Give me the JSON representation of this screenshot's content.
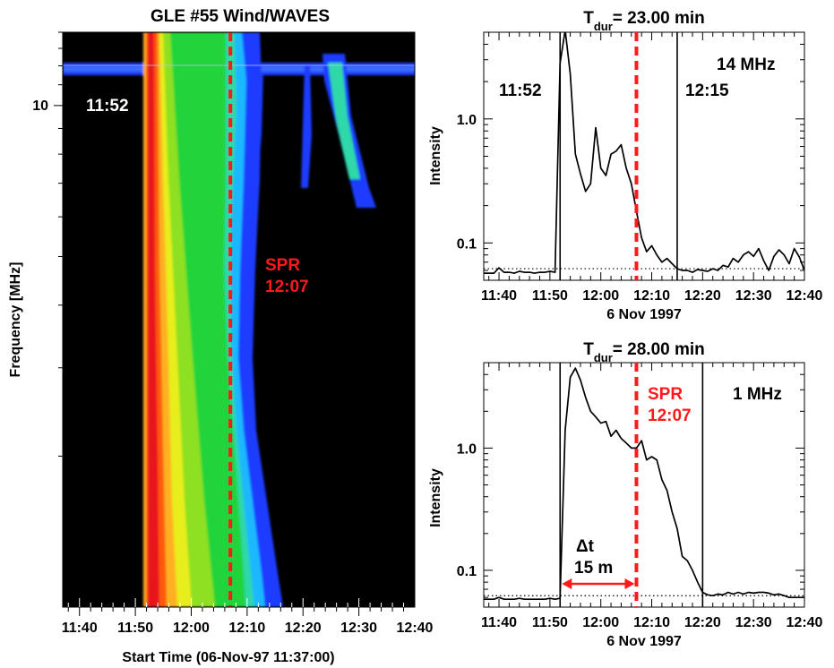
{
  "colors": {
    "marker": "#ff1a1a",
    "axis": "#000000",
    "background": "#ffffff"
  },
  "chart_data": [
    {
      "type": "heatmap",
      "title": "GLE #55 Wind/WAVES",
      "xlabel": "Start Time (06-Nov-97 11:37:00)",
      "ylabel": "Frequency [MHz]",
      "x_unit": "minutes after 11:37",
      "xlim": [
        0,
        63
      ],
      "ylim_mhz": [
        1,
        14
      ],
      "y_scale": "log",
      "x_ticks": [
        3,
        13,
        23,
        33,
        43,
        53,
        63
      ],
      "x_tick_labels": [
        "11:40",
        "11:50",
        "12:00",
        "12:10",
        "12:20",
        "12:30",
        "12:40"
      ],
      "y_ticks": [
        10
      ],
      "y_tick_labels": [
        "10"
      ],
      "annotations": {
        "start_label": "11:52",
        "spr_label_1": "SPR",
        "spr_label_2": "12:07"
      },
      "spr_time": 30,
      "note": "Intensity shown as a color image; no colorbar is printed."
    },
    {
      "type": "line",
      "title_main": "T",
      "title_sub": "dur",
      "title_rest": "= 23.00 min",
      "freq_label": "14 MHz",
      "ylabel": "Intensity",
      "xlabel": "6 Nov 1997",
      "y_scale": "log",
      "ylim": [
        0.05,
        5.0
      ],
      "xlim": [
        0,
        63
      ],
      "x_ticks": [
        3,
        13,
        23,
        33,
        43,
        53,
        63
      ],
      "x_tick_labels": [
        "11:40",
        "11:50",
        "12:00",
        "12:10",
        "12:20",
        "12:30",
        "12:40"
      ],
      "y_ticks": [
        0.1,
        1.0
      ],
      "y_tick_labels": [
        "0.1",
        "1.0"
      ],
      "background_level": 0.062,
      "vlines": [
        15,
        38
      ],
      "vline_labels": [
        "11:52",
        "12:15"
      ],
      "spr_time": 30,
      "series": [
        {
          "x": [
            0,
            1,
            2,
            3,
            4,
            5,
            6,
            7,
            8,
            9,
            10,
            11,
            12,
            13,
            14,
            15,
            16,
            17,
            18,
            19,
            20,
            21,
            22,
            23,
            24,
            25,
            26,
            27,
            28,
            29,
            30,
            31,
            32,
            33,
            34,
            35,
            36,
            37,
            38,
            39,
            40,
            41,
            42,
            43,
            44,
            45,
            46,
            47,
            48,
            49,
            50,
            51,
            52,
            53,
            54,
            55,
            56,
            57,
            58,
            59,
            60,
            61,
            62,
            63
          ],
          "y": [
            0.057,
            0.057,
            0.057,
            0.063,
            0.058,
            0.058,
            0.057,
            0.059,
            0.058,
            0.058,
            0.057,
            0.058,
            0.058,
            0.059,
            0.058,
            2.8,
            5.2,
            2.3,
            0.52,
            0.36,
            0.26,
            0.3,
            0.85,
            0.4,
            0.35,
            0.52,
            0.55,
            0.62,
            0.4,
            0.3,
            0.18,
            0.11,
            0.085,
            0.095,
            0.08,
            0.07,
            0.075,
            0.068,
            0.062,
            0.06,
            0.06,
            0.058,
            0.061,
            0.06,
            0.059,
            0.062,
            0.06,
            0.066,
            0.064,
            0.075,
            0.07,
            0.08,
            0.085,
            0.078,
            0.09,
            0.072,
            0.06,
            0.078,
            0.088,
            0.08,
            0.068,
            0.09,
            0.077,
            0.06
          ]
        }
      ]
    },
    {
      "type": "line",
      "title_main": "T",
      "title_sub": "dur",
      "title_rest": "= 28.00 min",
      "freq_label": "1 MHz",
      "ylabel": "Intensity",
      "xlabel": "6 Nov 1997",
      "y_scale": "log",
      "ylim": [
        0.05,
        5.0
      ],
      "xlim": [
        0,
        63
      ],
      "x_ticks": [
        3,
        13,
        23,
        33,
        43,
        53,
        63
      ],
      "x_tick_labels": [
        "11:40",
        "11:50",
        "12:00",
        "12:10",
        "12:20",
        "12:30",
        "12:40"
      ],
      "y_ticks": [
        0.1,
        1.0
      ],
      "y_tick_labels": [
        "0.1",
        "1.0"
      ],
      "background_level": 0.062,
      "vlines": [
        15,
        43
      ],
      "spr_time": 30,
      "spr_labels": [
        "SPR",
        "12:07"
      ],
      "delta_label_1": "Δt",
      "delta_label_2": "15 m",
      "delta_range": [
        15,
        30
      ],
      "series": [
        {
          "x": [
            0,
            1,
            2,
            3,
            4,
            5,
            6,
            7,
            8,
            9,
            10,
            11,
            12,
            13,
            14,
            15,
            16,
            17,
            18,
            19,
            20,
            21,
            22,
            23,
            24,
            25,
            26,
            27,
            28,
            29,
            30,
            31,
            32,
            33,
            34,
            35,
            36,
            37,
            38,
            39,
            40,
            41,
            42,
            43,
            44,
            45,
            46,
            47,
            48,
            49,
            50,
            51,
            52,
            53,
            54,
            55,
            56,
            57,
            58,
            59,
            60,
            61,
            62,
            63
          ],
          "y": [
            0.058,
            0.058,
            0.058,
            0.06,
            0.058,
            0.058,
            0.058,
            0.059,
            0.058,
            0.058,
            0.058,
            0.058,
            0.058,
            0.059,
            0.058,
            0.059,
            1.4,
            3.8,
            4.5,
            3.6,
            2.6,
            2.0,
            1.8,
            1.6,
            1.65,
            1.25,
            1.4,
            1.2,
            1.1,
            1.0,
            1.0,
            1.15,
            0.8,
            0.85,
            0.8,
            0.55,
            0.45,
            0.3,
            0.22,
            0.13,
            0.12,
            0.1,
            0.08,
            0.066,
            0.063,
            0.062,
            0.064,
            0.063,
            0.066,
            0.064,
            0.066,
            0.064,
            0.066,
            0.065,
            0.066,
            0.066,
            0.065,
            0.063,
            0.064,
            0.062,
            0.06,
            0.06,
            0.06,
            0.06
          ]
        }
      ]
    }
  ]
}
